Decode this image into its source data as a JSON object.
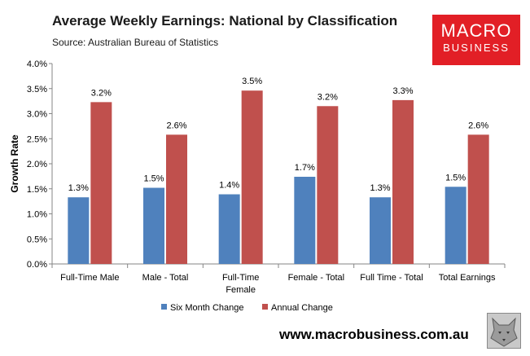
{
  "header": {
    "title": "Average Weekly Earnings: National by Classification",
    "subtitle": "Source: Australian Bureau of Statistics"
  },
  "logo": {
    "line1": "MACRO",
    "line2": "BUSINESS",
    "color": "#e21f26"
  },
  "footer": {
    "website": "www.macrobusiness.com.au"
  },
  "chart_data": {
    "type": "bar",
    "title": "Average Weekly Earnings: National by Classification",
    "ylabel": "Growth Rate",
    "xlabel": "",
    "ylim": [
      0,
      4
    ],
    "yticks": [
      "0.0%",
      "0.5%",
      "1.0%",
      "1.5%",
      "2.0%",
      "2.5%",
      "3.0%",
      "3.5%",
      "4.0%"
    ],
    "grid": false,
    "legend_position": "bottom",
    "categories": [
      [
        "Full-Time Male"
      ],
      [
        "Male - Total"
      ],
      [
        "Full-Time",
        "Female"
      ],
      [
        "Female - Total"
      ],
      [
        "Full Time - Total"
      ],
      [
        "Total Earnings"
      ]
    ],
    "series": [
      {
        "name": "Six Month Change",
        "color": "#4f81bd",
        "values": [
          1.33,
          1.52,
          1.39,
          1.74,
          1.33,
          1.54
        ],
        "labels": [
          "1.3%",
          "1.5%",
          "1.4%",
          "1.7%",
          "1.3%",
          "1.5%"
        ]
      },
      {
        "name": "Annual Change",
        "color": "#c0504d",
        "values": [
          3.23,
          2.58,
          3.46,
          3.15,
          3.27,
          2.58
        ],
        "labels": [
          "3.2%",
          "2.6%",
          "3.5%",
          "3.2%",
          "3.3%",
          "2.6%"
        ]
      }
    ]
  }
}
